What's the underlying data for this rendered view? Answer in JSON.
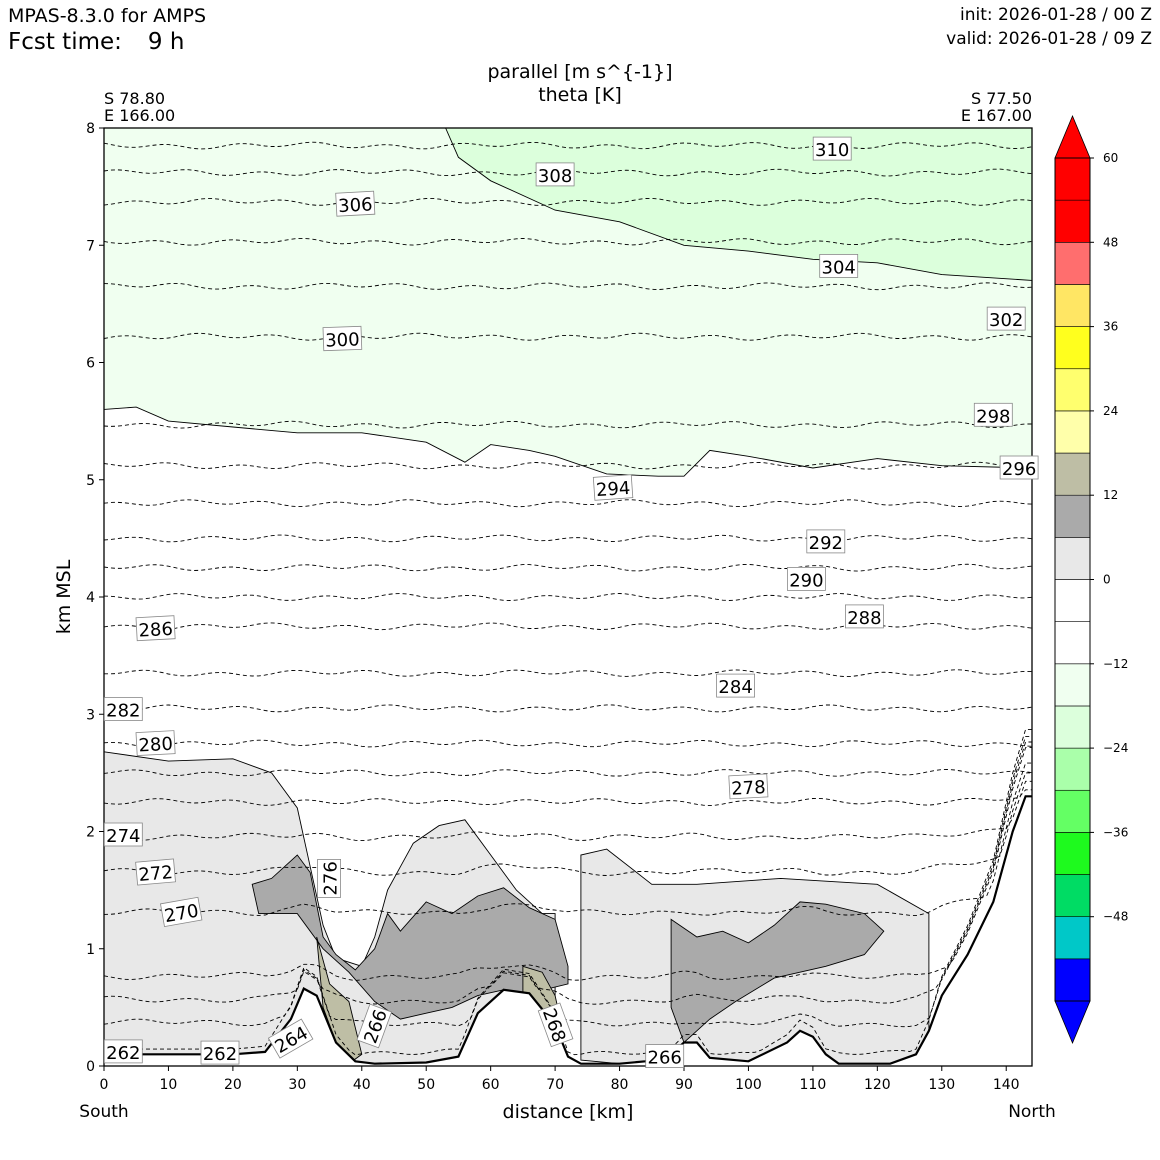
{
  "header": {
    "model": "MPAS-8.3.0 for AMPS",
    "fcst_label": "Fcst time:",
    "fcst_value": "9 h",
    "init": "init: 2026-01-28 / 00 Z",
    "valid": "valid: 2026-01-28 / 09 Z"
  },
  "chart_data": {
    "type": "contour",
    "title": "parallel [m s^{-1}]",
    "subtitle": "theta [K]",
    "xlabel": "distance [km]",
    "ylabel": "km MSL",
    "xlim": [
      0,
      144
    ],
    "ylim": [
      0,
      8
    ],
    "xticks": [
      "0",
      "10",
      "20",
      "30",
      "40",
      "50",
      "60",
      "70",
      "80",
      "90",
      "100",
      "110",
      "120",
      "130",
      "140"
    ],
    "yticks": [
      "0",
      "1",
      "2",
      "3",
      "4",
      "5",
      "6",
      "7",
      "8"
    ],
    "grid": false,
    "left_endpoint": {
      "lat": "S 78.80",
      "lon": "E 166.00",
      "label": "South"
    },
    "right_endpoint": {
      "lat": "S 77.50",
      "lon": "E 167.00",
      "label": "North"
    },
    "colorbar": {
      "ticks": [
        "60",
        "48",
        "36",
        "24",
        "12",
        "0",
        "−12",
        "−24",
        "−36",
        "−48"
      ],
      "levels": [
        -60,
        -54,
        -48,
        -42,
        -36,
        -30,
        -24,
        -18,
        -12,
        -6,
        0,
        6,
        12,
        18,
        24,
        30,
        36,
        42,
        48,
        54,
        60
      ],
      "colors": [
        "#0000ff",
        "#00c8c8",
        "#00dc64",
        "#1efa1e",
        "#64ff64",
        "#aaffaa",
        "#dcffdc",
        "#f0fff0",
        "#ffffff",
        "#ffffff",
        "#e8e8e8",
        "#aaaaaa",
        "#bebea5",
        "#ffffaa",
        "#ffff6e",
        "#ffff1e",
        "#ffe664",
        "#ff6e6e",
        "#ff0000",
        "#ff0000"
      ],
      "extend": "both"
    },
    "terrain_km": [
      [
        0,
        0.1
      ],
      [
        10,
        0.1
      ],
      [
        20,
        0.1
      ],
      [
        25,
        0.12
      ],
      [
        29,
        0.4
      ],
      [
        31,
        0.66
      ],
      [
        33,
        0.6
      ],
      [
        36,
        0.2
      ],
      [
        39,
        0.04
      ],
      [
        42,
        0.02
      ],
      [
        50,
        0.03
      ],
      [
        55,
        0.08
      ],
      [
        58,
        0.45
      ],
      [
        62,
        0.65
      ],
      [
        66,
        0.62
      ],
      [
        70,
        0.35
      ],
      [
        72,
        0.08
      ],
      [
        74,
        0.02
      ],
      [
        80,
        0.02
      ],
      [
        84,
        0.04
      ],
      [
        88,
        0.1
      ],
      [
        90,
        0.2
      ],
      [
        92,
        0.2
      ],
      [
        94,
        0.07
      ],
      [
        100,
        0.04
      ],
      [
        106,
        0.2
      ],
      [
        108,
        0.3
      ],
      [
        110,
        0.25
      ],
      [
        112,
        0.1
      ],
      [
        114,
        0.02
      ],
      [
        122,
        0.02
      ],
      [
        126,
        0.1
      ],
      [
        128,
        0.3
      ],
      [
        130,
        0.6
      ],
      [
        134,
        0.95
      ],
      [
        138,
        1.4
      ],
      [
        141,
        2.0
      ],
      [
        143,
        2.3
      ],
      [
        144,
        2.3
      ]
    ],
    "theta_contours": [
      {
        "value": 262,
        "y": 0.1
      },
      {
        "value": 264,
        "y": 0.35
      },
      {
        "value": 266,
        "y": 0.55
      },
      {
        "value": 268,
        "y": 0.75
      },
      {
        "value": 270,
        "y": 1.3
      },
      {
        "value": 272,
        "y": 1.65
      },
      {
        "value": 274,
        "y": 1.95
      },
      {
        "value": 276,
        "y": 2.25
      },
      {
        "value": 278,
        "y": 2.5
      },
      {
        "value": 280,
        "y": 2.75
      },
      {
        "value": 282,
        "y": 3.05
      },
      {
        "value": 284,
        "y": 3.35
      },
      {
        "value": 286,
        "y": 3.75
      },
      {
        "value": 288,
        "y": 4.0
      },
      {
        "value": 290,
        "y": 4.25
      },
      {
        "value": 292,
        "y": 4.5
      },
      {
        "value": 294,
        "y": 4.8
      },
      {
        "value": 296,
        "y": 5.12
      },
      {
        "value": 298,
        "y": 5.47
      },
      {
        "value": 300,
        "y": 6.22
      },
      {
        "value": 302,
        "y": 6.65
      },
      {
        "value": 304,
        "y": 7.03
      },
      {
        "value": 306,
        "y": 7.37
      },
      {
        "value": 308,
        "y": 7.62
      },
      {
        "value": 310,
        "y": 7.85
      }
    ],
    "theta_labels": [
      {
        "text": "310",
        "x": 113,
        "y": 7.82,
        "rot": 0
      },
      {
        "text": "308",
        "x": 70,
        "y": 7.6,
        "rot": 0
      },
      {
        "text": "306",
        "x": 39,
        "y": 7.35,
        "rot": -3
      },
      {
        "text": "304",
        "x": 114,
        "y": 6.82,
        "rot": 0
      },
      {
        "text": "302",
        "x": 140,
        "y": 6.37,
        "rot": 0
      },
      {
        "text": "300",
        "x": 37,
        "y": 6.2,
        "rot": -2
      },
      {
        "text": "298",
        "x": 138,
        "y": 5.55,
        "rot": 0
      },
      {
        "text": "296",
        "x": 142,
        "y": 5.1,
        "rot": 0
      },
      {
        "text": "294",
        "x": 79,
        "y": 4.93,
        "rot": -4
      },
      {
        "text": "292",
        "x": 112,
        "y": 4.47,
        "rot": 0
      },
      {
        "text": "290",
        "x": 109,
        "y": 4.15,
        "rot": 0
      },
      {
        "text": "288",
        "x": 118,
        "y": 3.83,
        "rot": 0
      },
      {
        "text": "286",
        "x": 8,
        "y": 3.73,
        "rot": -3
      },
      {
        "text": "284",
        "x": 98,
        "y": 3.24,
        "rot": 0
      },
      {
        "text": "282",
        "x": 3,
        "y": 3.04,
        "rot": 0
      },
      {
        "text": "280",
        "x": 8,
        "y": 2.75,
        "rot": -3
      },
      {
        "text": "278",
        "x": 100,
        "y": 2.38,
        "rot": -3
      },
      {
        "text": "274",
        "x": 3,
        "y": 1.97,
        "rot": 0
      },
      {
        "text": "272",
        "x": 8,
        "y": 1.65,
        "rot": -5
      },
      {
        "text": "270",
        "x": 12,
        "y": 1.31,
        "rot": -10
      },
      {
        "text": "276",
        "x": 35,
        "y": 1.6,
        "rot": -90
      },
      {
        "text": "264",
        "x": 29,
        "y": 0.23,
        "rot": -30
      },
      {
        "text": "266",
        "x": 42,
        "y": 0.34,
        "rot": -70
      },
      {
        "text": "268",
        "x": 70,
        "y": 0.35,
        "rot": 70
      },
      {
        "text": "266",
        "x": 87,
        "y": 0.08,
        "rot": 0
      },
      {
        "text": "262",
        "x": 3,
        "y": 0.12,
        "rot": 0
      },
      {
        "text": "262",
        "x": 18,
        "y": 0.11,
        "rot": 0
      }
    ],
    "wind_regions": [
      {
        "level": "-12 to -6",
        "color": "#f0fff0",
        "polygon": [
          [
            0,
            5.6
          ],
          [
            5,
            5.62
          ],
          [
            10,
            5.5
          ],
          [
            20,
            5.45
          ],
          [
            30,
            5.4
          ],
          [
            40,
            5.4
          ],
          [
            50,
            5.32
          ],
          [
            56,
            5.15
          ],
          [
            60,
            5.3
          ],
          [
            66,
            5.25
          ],
          [
            70,
            5.2
          ],
          [
            78,
            5.05
          ],
          [
            86,
            5.03
          ],
          [
            90,
            5.03
          ],
          [
            94,
            5.25
          ],
          [
            100,
            5.2
          ],
          [
            110,
            5.1
          ],
          [
            120,
            5.18
          ],
          [
            130,
            5.12
          ],
          [
            144,
            5.1
          ],
          [
            144,
            8
          ],
          [
            0,
            8
          ]
        ]
      },
      {
        "level": "-18 to -12",
        "color": "#dcffdc",
        "polygon": [
          [
            53,
            8
          ],
          [
            55,
            7.75
          ],
          [
            60,
            7.55
          ],
          [
            70,
            7.3
          ],
          [
            80,
            7.2
          ],
          [
            90,
            7.0
          ],
          [
            100,
            6.95
          ],
          [
            110,
            6.88
          ],
          [
            120,
            6.85
          ],
          [
            130,
            6.75
          ],
          [
            144,
            6.7
          ],
          [
            144,
            8
          ]
        ]
      },
      {
        "level": "6 to 12",
        "color": "#e8e8e8",
        "polygon": [
          [
            0,
            2.68
          ],
          [
            10,
            2.6
          ],
          [
            20,
            2.62
          ],
          [
            26,
            2.5
          ],
          [
            30,
            2.2
          ],
          [
            32,
            1.7
          ],
          [
            34,
            1.2
          ],
          [
            36,
            0.92
          ],
          [
            40,
            0.85
          ],
          [
            42,
            1.1
          ],
          [
            44,
            1.5
          ],
          [
            46,
            1.7
          ],
          [
            48,
            1.9
          ],
          [
            52,
            2.05
          ],
          [
            56,
            2.1
          ],
          [
            60,
            1.8
          ],
          [
            64,
            1.5
          ],
          [
            68,
            1.3
          ],
          [
            70,
            1.3
          ],
          [
            70,
            0.35
          ],
          [
            66,
            0.62
          ],
          [
            62,
            0.65
          ],
          [
            58,
            0.45
          ],
          [
            55,
            0.08
          ],
          [
            50,
            0.03
          ],
          [
            42,
            0.02
          ],
          [
            39,
            0.04
          ],
          [
            36,
            0.2
          ],
          [
            33,
            0.6
          ],
          [
            31,
            0.66
          ],
          [
            29,
            0.4
          ],
          [
            25,
            0.12
          ],
          [
            20,
            0.1
          ],
          [
            10,
            0.1
          ],
          [
            0,
            0.1
          ]
        ]
      },
      {
        "level": "6 to 12",
        "color": "#e8e8e8",
        "polygon": [
          [
            74,
            0.05
          ],
          [
            74,
            1.8
          ],
          [
            78,
            1.85
          ],
          [
            85,
            1.55
          ],
          [
            92,
            1.55
          ],
          [
            105,
            1.6
          ],
          [
            120,
            1.55
          ],
          [
            128,
            1.3
          ],
          [
            128,
            0.3
          ],
          [
            126,
            0.1
          ],
          [
            122,
            0.02
          ],
          [
            114,
            0.02
          ],
          [
            112,
            0.1
          ],
          [
            110,
            0.25
          ],
          [
            108,
            0.3
          ],
          [
            106,
            0.2
          ],
          [
            100,
            0.04
          ],
          [
            94,
            0.07
          ],
          [
            92,
            0.2
          ],
          [
            90,
            0.2
          ],
          [
            88,
            0.1
          ],
          [
            84,
            0.04
          ],
          [
            80,
            0.02
          ]
        ]
      },
      {
        "level": "12 to 18",
        "color": "#aaaaaa",
        "polygon": [
          [
            23,
            1.55
          ],
          [
            26,
            1.6
          ],
          [
            30,
            1.8
          ],
          [
            32,
            1.65
          ],
          [
            34,
            1.1
          ],
          [
            36,
            0.95
          ],
          [
            39,
            0.82
          ],
          [
            42,
            1.0
          ],
          [
            44,
            1.3
          ],
          [
            46,
            1.15
          ],
          [
            50,
            1.4
          ],
          [
            54,
            1.3
          ],
          [
            58,
            1.45
          ],
          [
            62,
            1.52
          ],
          [
            66,
            1.35
          ],
          [
            70,
            1.25
          ],
          [
            72,
            0.85
          ],
          [
            72,
            0.7
          ],
          [
            66,
            0.62
          ],
          [
            62,
            0.65
          ],
          [
            58,
            0.6
          ],
          [
            54,
            0.5
          ],
          [
            50,
            0.45
          ],
          [
            46,
            0.4
          ],
          [
            42,
            0.55
          ],
          [
            38,
            0.8
          ],
          [
            34,
            1.0
          ],
          [
            30,
            1.3
          ],
          [
            24,
            1.3
          ]
        ]
      },
      {
        "level": "12 to 18",
        "color": "#aaaaaa",
        "polygon": [
          [
            88,
            1.25
          ],
          [
            92,
            1.1
          ],
          [
            96,
            1.15
          ],
          [
            100,
            1.05
          ],
          [
            104,
            1.2
          ],
          [
            108,
            1.4
          ],
          [
            112,
            1.38
          ],
          [
            118,
            1.3
          ],
          [
            121,
            1.15
          ],
          [
            118,
            0.95
          ],
          [
            112,
            0.85
          ],
          [
            104,
            0.75
          ],
          [
            98,
            0.55
          ],
          [
            94,
            0.4
          ],
          [
            90,
            0.2
          ],
          [
            88,
            0.5
          ]
        ]
      },
      {
        "level": "18 to 24",
        "color": "#bebea5",
        "polygon": [
          [
            33,
            1.1
          ],
          [
            35,
            0.7
          ],
          [
            38,
            0.55
          ],
          [
            40,
            0.1
          ],
          [
            38,
            0.02
          ],
          [
            36,
            0.2
          ],
          [
            34,
            0.5
          ]
        ]
      },
      {
        "level": "18 to 24",
        "color": "#bebea5",
        "polygon": [
          [
            65,
            0.85
          ],
          [
            68,
            0.8
          ],
          [
            70,
            0.6
          ],
          [
            71,
            0.35
          ],
          [
            70,
            0.1
          ],
          [
            68,
            0.05
          ],
          [
            66,
            0.3
          ],
          [
            65,
            0.6
          ]
        ]
      }
    ]
  }
}
